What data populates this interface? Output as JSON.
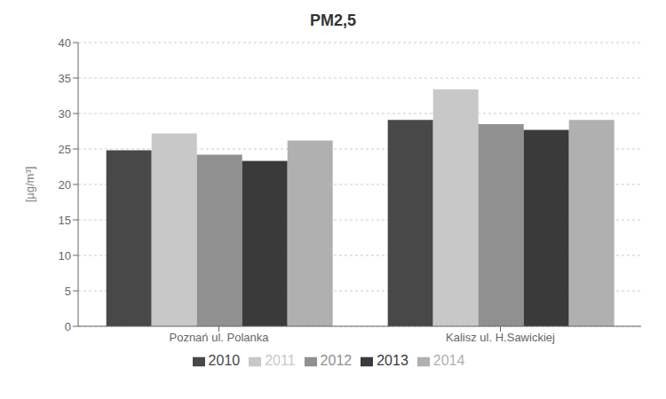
{
  "chart_data": {
    "type": "bar",
    "title": "PM2,5",
    "ylabel": "[µg/m³]",
    "categories": [
      "Poznań ul. Polanka",
      "Kalisz ul. H.Sawickiej"
    ],
    "series": [
      {
        "name": "2010",
        "color": "#484848",
        "values": [
          24.8,
          29.1
        ]
      },
      {
        "name": "2011",
        "color": "#c8c8c8",
        "values": [
          27.2,
          33.4
        ]
      },
      {
        "name": "2012",
        "color": "#909090",
        "values": [
          24.2,
          28.5
        ]
      },
      {
        "name": "2013",
        "color": "#3a3a3a",
        "values": [
          23.3,
          27.7
        ]
      },
      {
        "name": "2014",
        "color": "#b0b0b0",
        "values": [
          26.2,
          29.1
        ]
      }
    ],
    "ylim": [
      0,
      40
    ],
    "yticks": [
      0,
      5,
      10,
      15,
      20,
      25,
      30,
      35,
      40
    ],
    "grid": true,
    "legend": "bottom"
  }
}
